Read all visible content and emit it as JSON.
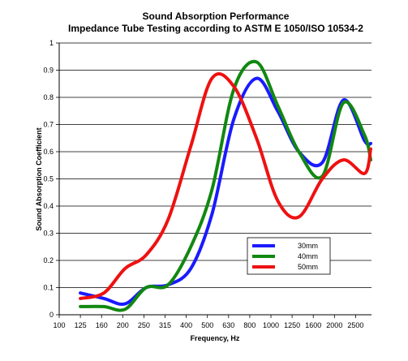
{
  "chart_data": {
    "type": "line",
    "title": "Sound Absorption Performance",
    "subtitle": "Impedance Tube Testing according to ASTM E 1050/ISO 10534-2",
    "xlabel": "Frequency, Hz",
    "ylabel": "Sound Absorption Coefficient",
    "x_scale": "log",
    "x_ticks": [
      100,
      125,
      160,
      200,
      250,
      315,
      400,
      500,
      630,
      800,
      1000,
      1250,
      1600,
      2000,
      2500
    ],
    "x_range": [
      100,
      3150
    ],
    "ylim": [
      0,
      1
    ],
    "y_ticks": [
      0,
      0.1,
      0.2,
      0.3,
      0.4,
      0.5,
      0.6,
      0.7,
      0.8,
      0.9,
      1
    ],
    "grid": "horizontal",
    "legend_position": "bottom-right",
    "series": [
      {
        "name": "30mm",
        "color": "#1a1aff",
        "x": [
          125,
          160,
          200,
          250,
          315,
          400,
          500,
          630,
          800,
          1000,
          1250,
          1600,
          2000,
          2500,
          3150
        ],
        "y": [
          0.08,
          0.06,
          0.04,
          0.1,
          0.11,
          0.17,
          0.37,
          0.72,
          0.87,
          0.75,
          0.6,
          0.56,
          0.79,
          0.64,
          0.63
        ]
      },
      {
        "name": "40mm",
        "color": "#118811",
        "x": [
          125,
          160,
          200,
          250,
          315,
          400,
          500,
          630,
          800,
          1000,
          1250,
          1600,
          2000,
          2500,
          3150
        ],
        "y": [
          0.03,
          0.03,
          0.02,
          0.1,
          0.11,
          0.25,
          0.46,
          0.83,
          0.93,
          0.77,
          0.6,
          0.51,
          0.78,
          0.66,
          0.57
        ]
      },
      {
        "name": "50mm",
        "color": "#ee1111",
        "x": [
          125,
          160,
          200,
          250,
          315,
          400,
          500,
          630,
          800,
          1000,
          1250,
          1600,
          2000,
          2500,
          3150
        ],
        "y": [
          0.06,
          0.08,
          0.17,
          0.22,
          0.35,
          0.62,
          0.87,
          0.84,
          0.65,
          0.42,
          0.36,
          0.5,
          0.57,
          0.52,
          0.61
        ]
      }
    ]
  }
}
